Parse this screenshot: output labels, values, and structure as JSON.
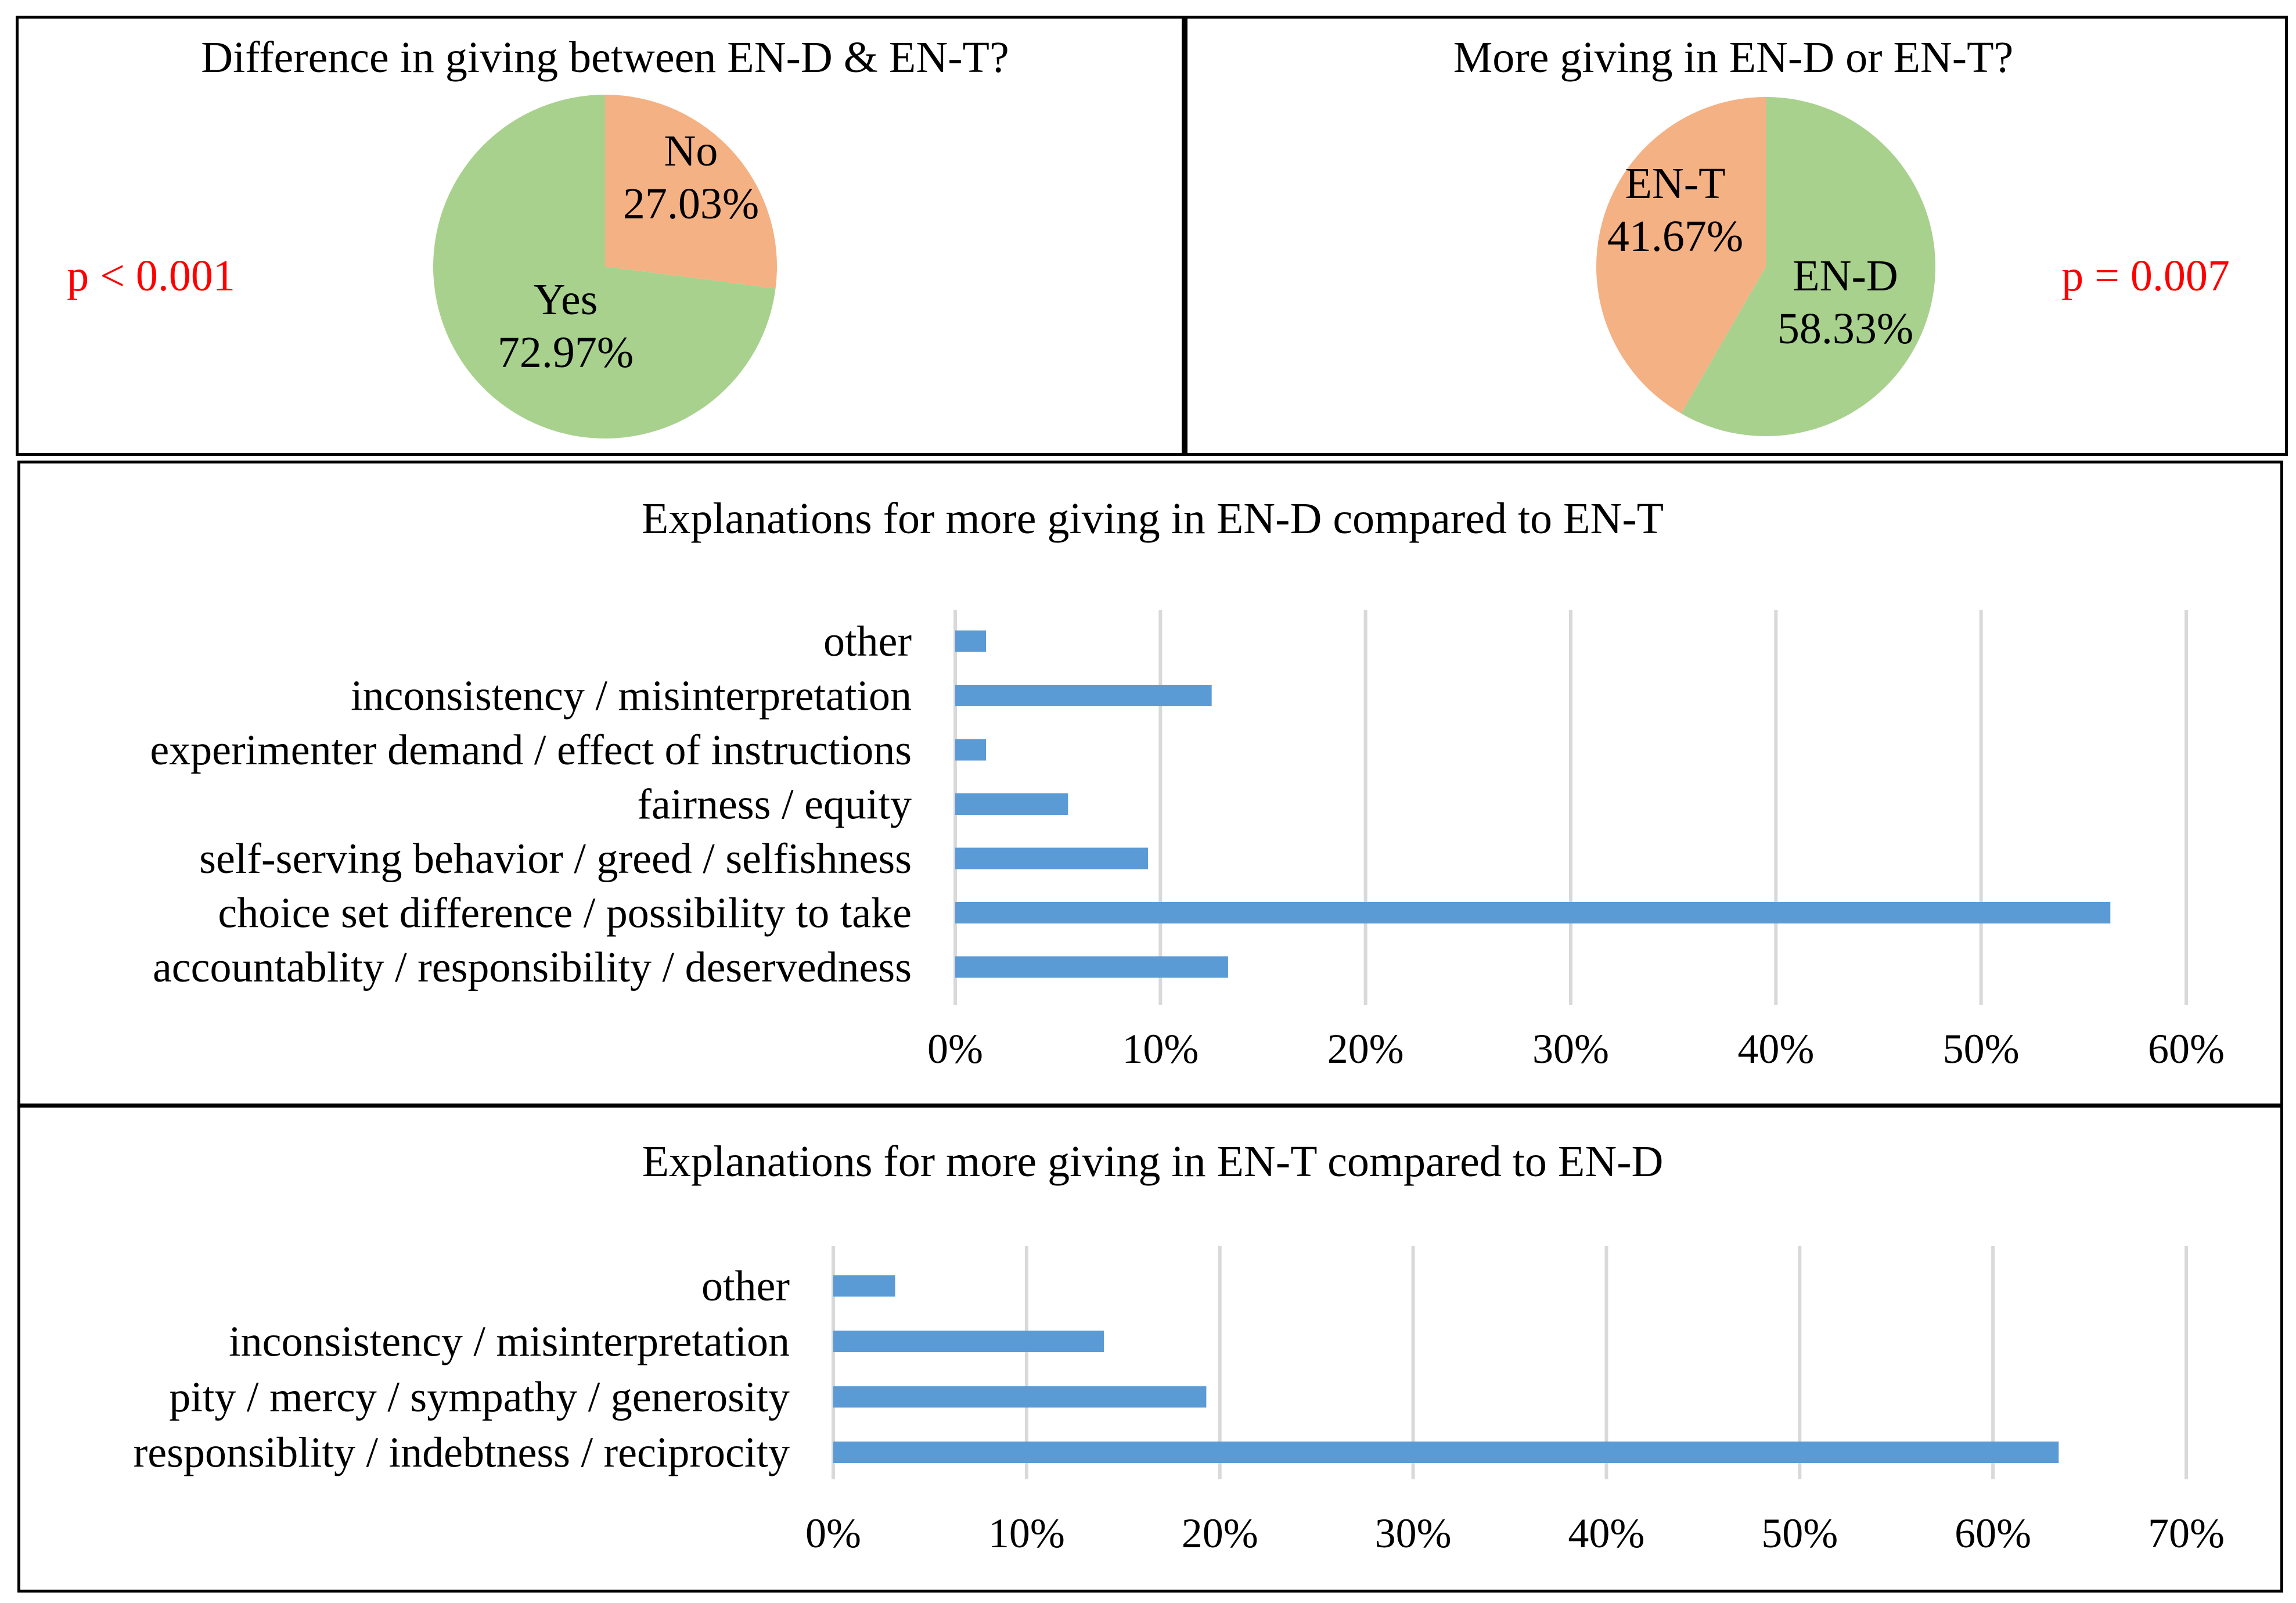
{
  "chart_data": [
    {
      "type": "pie",
      "title": "Difference in giving between EN-D & EN-T?",
      "annotation": "p < 0.001",
      "slices": [
        {
          "label": "No",
          "value_label": "27.03%",
          "value": 27.03,
          "color": "#f4b183"
        },
        {
          "label": "Yes",
          "value_label": "72.97%",
          "value": 72.97,
          "color": "#a9d18e"
        }
      ]
    },
    {
      "type": "pie",
      "title": "More giving in EN-D or EN-T?",
      "annotation": "p = 0.007",
      "slices": [
        {
          "label": "EN-D",
          "value_label": "58.33%",
          "value": 58.33,
          "color": "#a9d18e"
        },
        {
          "label": "EN-T",
          "value_label": "41.67%",
          "value": 41.67,
          "color": "#f4b183"
        }
      ]
    },
    {
      "type": "bar",
      "orientation": "horizontal",
      "title": "Explanations for more giving in EN-D compared to EN-T",
      "categories": [
        "other",
        "inconsistency / misinterpretation",
        "experimenter demand / effect of instructions",
        "fairness / equity",
        "self-serving behavior / greed / selfishness",
        "choice set difference / possibility to take",
        "accountablity / responsibility / deservedness"
      ],
      "values": [
        1.5,
        12.5,
        1.5,
        5.5,
        9.4,
        56.3,
        13.3
      ],
      "xlim": [
        0,
        60
      ],
      "ticks": [
        0,
        10,
        20,
        30,
        40,
        50,
        60
      ],
      "tick_labels": [
        "0%",
        "10%",
        "20%",
        "30%",
        "40%",
        "50%",
        "60%"
      ],
      "grid": true,
      "color": "#5b9bd5"
    },
    {
      "type": "bar",
      "orientation": "horizontal",
      "title": "Explanations for more giving in EN-T compared to EN-D",
      "categories": [
        "other",
        "inconsistency / misinterpretation",
        "pity / mercy / sympathy / generosity",
        "responsiblity / indebtness / reciprocity"
      ],
      "values": [
        3.2,
        14.0,
        19.3,
        63.4
      ],
      "xlim": [
        0,
        70
      ],
      "ticks": [
        0,
        10,
        20,
        30,
        40,
        50,
        60,
        70
      ],
      "tick_labels": [
        "0%",
        "10%",
        "20%",
        "30%",
        "40%",
        "50%",
        "60%",
        "70%"
      ],
      "grid": true,
      "color": "#5b9bd5"
    }
  ]
}
